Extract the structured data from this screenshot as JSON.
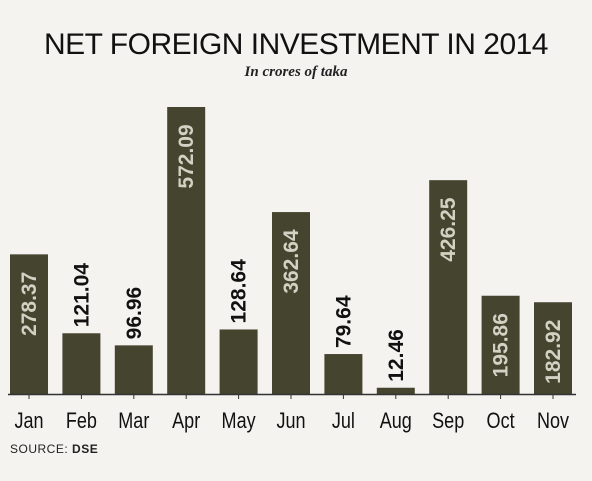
{
  "title": "NET FOREIGN INVESTMENT IN 2014",
  "subtitle": "In crores of taka",
  "source_label": "SOURCE:",
  "source_value": "DSE",
  "colors": {
    "bar": "#45442f",
    "bar_label_on_bar": "#d4d0c4",
    "text": "#111111",
    "axis": "#333333",
    "background": "#f4f3ef"
  },
  "chart_data": {
    "type": "bar",
    "title": "NET FOREIGN INVESTMENT IN 2014",
    "subtitle": "In crores of taka",
    "categories": [
      "Jan",
      "Feb",
      "Mar",
      "Apr",
      "May",
      "Jun",
      "Jul",
      "Aug",
      "Sep",
      "Oct",
      "Nov"
    ],
    "values": [
      278.37,
      121.04,
      96.96,
      572.09,
      128.64,
      362.64,
      79.64,
      12.46,
      426.25,
      195.86,
      182.92
    ],
    "value_labels": [
      "278.37",
      "121.04",
      "96.96",
      "572.09",
      "128.64",
      "362.64",
      "79.64",
      "12.46",
      "426.25",
      "195.86",
      "182.92"
    ],
    "ylim": [
      0,
      572.09
    ],
    "grid": false,
    "legend": "none"
  }
}
